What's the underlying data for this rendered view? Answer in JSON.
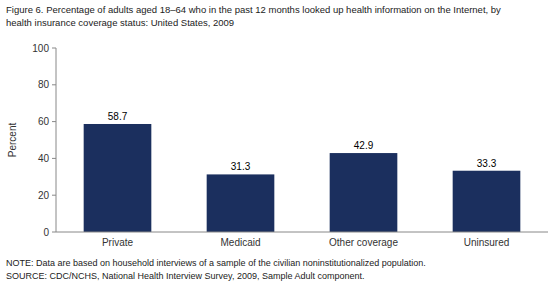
{
  "chart_data": {
    "type": "bar",
    "title": "Figure 6. Percentage of adults aged 18–64 who in the past 12 months looked up health information on the Internet, by",
    "subtitle": "health insurance coverage status: United States, 2009",
    "categories": [
      "Private",
      "Medicaid",
      "Other coverage",
      "Uninsured"
    ],
    "values": [
      58.7,
      31.3,
      42.9,
      33.3
    ],
    "color": "#1b2f5e",
    "y_label": "Percent",
    "ylim": [
      0,
      100
    ],
    "yticks": [
      0,
      20,
      40,
      60,
      80,
      100
    ],
    "grid": false,
    "data_labels": true,
    "annotations": [
      "NOTE: Data are based on household interviews of a sample of the civilian noninstitutionalized population.",
      "SOURCE: CDC/NCHS, National Health Interview Survey, 2009, Sample Adult component."
    ]
  }
}
